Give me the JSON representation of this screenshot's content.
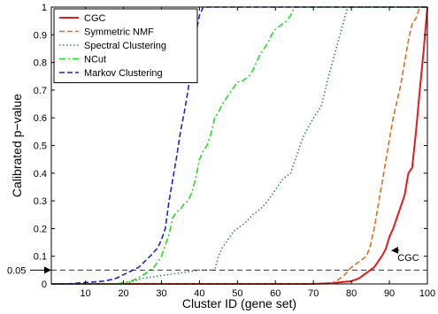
{
  "chart_data": {
    "type": "line",
    "title": "",
    "xlabel": "Cluster ID (gene set)",
    "ylabel": "Calibrated p−value",
    "xlim": [
      1,
      100
    ],
    "ylim": [
      0,
      1
    ],
    "xticks": [
      10,
      20,
      30,
      40,
      50,
      60,
      70,
      80,
      90,
      100
    ],
    "xtick_labels": [
      "10",
      "20",
      "30",
      "40",
      "50",
      "60",
      "70",
      "80",
      "90",
      "100"
    ],
    "yticks": [
      0,
      0.1,
      0.2,
      0.3,
      0.4,
      0.5,
      0.6,
      0.7,
      0.8,
      0.9,
      1
    ],
    "ytick_labels": [
      "0",
      "0.1",
      "0.2",
      "0.3",
      "0.4",
      "0.5",
      "0.6",
      "0.7",
      "0.8",
      "0.9",
      "1"
    ],
    "grid": false,
    "legend_position": "top-left",
    "series": [
      {
        "name": "CGC",
        "color": "#e41a1c",
        "dash": "solid",
        "points": [
          [
            1,
            0
          ],
          [
            70,
            0
          ],
          [
            75,
            0.003
          ],
          [
            80,
            0.01
          ],
          [
            82,
            0.02
          ],
          [
            84,
            0.04
          ],
          [
            86,
            0.06
          ],
          [
            88,
            0.1
          ],
          [
            89,
            0.125
          ],
          [
            90,
            0.17
          ],
          [
            91,
            0.2
          ],
          [
            92,
            0.24
          ],
          [
            93,
            0.28
          ],
          [
            94,
            0.32
          ],
          [
            95,
            0.4
          ],
          [
            96,
            0.42
          ],
          [
            97,
            0.55
          ],
          [
            98,
            0.7
          ],
          [
            99,
            0.84
          ],
          [
            100,
            1.0
          ]
        ]
      },
      {
        "name": "Symmetric NMF",
        "color": "#d86f1f",
        "dash": "dashed",
        "points": [
          [
            1,
            0
          ],
          [
            74,
            0
          ],
          [
            76,
            0.01
          ],
          [
            78,
            0.03
          ],
          [
            80,
            0.06
          ],
          [
            82,
            0.08
          ],
          [
            84,
            0.1
          ],
          [
            85,
            0.14
          ],
          [
            86,
            0.2
          ],
          [
            87,
            0.28
          ],
          [
            88,
            0.36
          ],
          [
            89,
            0.44
          ],
          [
            90,
            0.52
          ],
          [
            91,
            0.6
          ],
          [
            92,
            0.66
          ],
          [
            93,
            0.72
          ],
          [
            94,
            0.8
          ],
          [
            95,
            0.88
          ],
          [
            96,
            0.94
          ],
          [
            97,
            0.96
          ],
          [
            98,
            1.0
          ],
          [
            100,
            1.0
          ]
        ]
      },
      {
        "name": "Spectral Clustering",
        "color": "#2e8b57",
        "dash": "dotted",
        "points": [
          [
            1,
            0
          ],
          [
            20,
            0
          ],
          [
            25,
            0.02
          ],
          [
            30,
            0.03
          ],
          [
            35,
            0.04
          ],
          [
            40,
            0.05
          ],
          [
            44,
            0.05
          ],
          [
            45,
            0.1
          ],
          [
            46,
            0.13
          ],
          [
            47,
            0.15
          ],
          [
            48,
            0.17
          ],
          [
            49,
            0.19
          ],
          [
            50,
            0.2
          ],
          [
            52,
            0.22
          ],
          [
            54,
            0.25
          ],
          [
            56,
            0.27
          ],
          [
            58,
            0.3
          ],
          [
            60,
            0.34
          ],
          [
            62,
            0.38
          ],
          [
            64,
            0.4
          ],
          [
            66,
            0.48
          ],
          [
            67,
            0.52
          ],
          [
            68,
            0.55
          ],
          [
            70,
            0.6
          ],
          [
            72,
            0.64
          ],
          [
            74,
            0.75
          ],
          [
            75,
            0.8
          ],
          [
            76,
            0.85
          ],
          [
            77,
            0.9
          ],
          [
            78,
            0.95
          ],
          [
            79,
            1.0
          ],
          [
            100,
            1.0
          ]
        ]
      },
      {
        "name": "NCut",
        "color": "#22dd22",
        "dash": "dashdot",
        "points": [
          [
            1,
            0
          ],
          [
            18,
            0
          ],
          [
            22,
            0.01
          ],
          [
            25,
            0.03
          ],
          [
            28,
            0.06
          ],
          [
            30,
            0.1
          ],
          [
            32,
            0.18
          ],
          [
            33,
            0.24
          ],
          [
            34,
            0.26
          ],
          [
            35,
            0.27
          ],
          [
            36,
            0.29
          ],
          [
            37,
            0.3
          ],
          [
            38,
            0.33
          ],
          [
            39,
            0.38
          ],
          [
            40,
            0.45
          ],
          [
            41,
            0.48
          ],
          [
            42,
            0.5
          ],
          [
            43,
            0.54
          ],
          [
            44,
            0.6
          ],
          [
            45,
            0.62
          ],
          [
            46,
            0.65
          ],
          [
            47,
            0.67
          ],
          [
            48,
            0.69
          ],
          [
            49,
            0.71
          ],
          [
            50,
            0.73
          ],
          [
            51,
            0.73
          ],
          [
            52,
            0.74
          ],
          [
            53,
            0.75
          ],
          [
            54,
            0.77
          ],
          [
            55,
            0.8
          ],
          [
            56,
            0.83
          ],
          [
            57,
            0.85
          ],
          [
            58,
            0.87
          ],
          [
            59,
            0.9
          ],
          [
            60,
            0.92
          ],
          [
            61,
            0.93
          ],
          [
            62,
            0.94
          ],
          [
            63,
            0.95
          ],
          [
            64,
            0.97
          ],
          [
            65,
            1.0
          ],
          [
            100,
            1.0
          ]
        ]
      },
      {
        "name": "Markov Clustering",
        "color": "#2222cc",
        "dash": "dashed",
        "points": [
          [
            1,
            0
          ],
          [
            5,
            0
          ],
          [
            10,
            0.005
          ],
          [
            15,
            0.01
          ],
          [
            18,
            0.02
          ],
          [
            21,
            0.04
          ],
          [
            24,
            0.06
          ],
          [
            27,
            0.1
          ],
          [
            29,
            0.13
          ],
          [
            30,
            0.16
          ],
          [
            31,
            0.2
          ],
          [
            32,
            0.3
          ],
          [
            33,
            0.38
          ],
          [
            34,
            0.46
          ],
          [
            35,
            0.55
          ],
          [
            36,
            0.62
          ],
          [
            37,
            0.7
          ],
          [
            38,
            0.8
          ],
          [
            39,
            0.9
          ],
          [
            40,
            0.97
          ],
          [
            41,
            1.0
          ],
          [
            100,
            1.0
          ]
        ]
      }
    ],
    "reference_line": {
      "y": 0.05,
      "label": "0.05",
      "style": "dashed",
      "color": "#333333"
    },
    "annotations": [
      {
        "text": "CGC",
        "target_x": 90,
        "target_y": 0.13,
        "text_x": 94,
        "text_y": 0.09
      }
    ]
  }
}
